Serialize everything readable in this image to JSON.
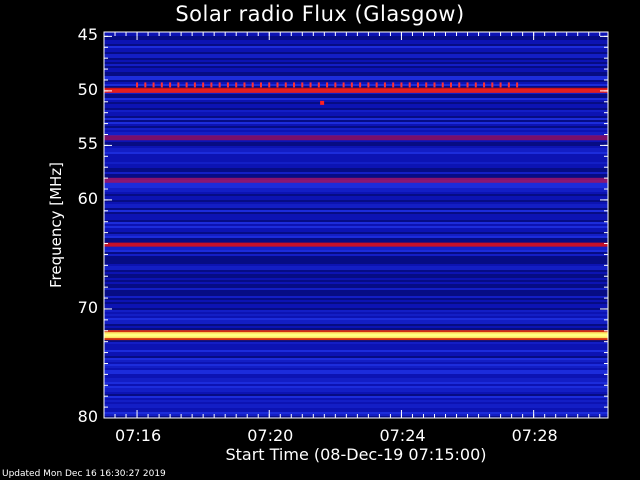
{
  "chart_data": {
    "type": "heatmap",
    "title": "Solar radio Flux (Glasgow)",
    "xlabel": "Start Time (08-Dec-19 07:15:00)",
    "ylabel": "Frequency [MHz]",
    "x_tick_labels": [
      "07:16",
      "07:20",
      "07:24",
      "07:28"
    ],
    "x_tick_minutes": [
      1,
      5,
      9,
      13
    ],
    "xlim_minutes": [
      0,
      15.25
    ],
    "y_tick_labels": [
      "45",
      "50",
      "55",
      "60",
      "70",
      "80"
    ],
    "y_ticks": [
      45,
      50,
      55,
      60,
      70,
      80
    ],
    "ylim": [
      44.6,
      80
    ],
    "background_colormap": "dark-blue",
    "bands": [
      {
        "freq": 49.9,
        "level": "high",
        "color": "#d01010"
      },
      {
        "freq": 50.0,
        "level": "high",
        "color": "#e82020"
      },
      {
        "freq": 54.3,
        "level": "medium",
        "color": "#a01060"
      },
      {
        "freq": 58.2,
        "level": "medium",
        "color": "#b01050"
      },
      {
        "freq": 64.1,
        "level": "high",
        "color": "#d01020"
      },
      {
        "freq": 72.4,
        "level": "saturated",
        "color": "#ffff80"
      }
    ],
    "spikes": {
      "freq": 49.5,
      "start_minute": 1.0,
      "end_minute": 12.7,
      "spacing_minutes": 0.25,
      "color": "#ff3030"
    },
    "isolated_points": [
      {
        "minute": 6.6,
        "freq": 51.1,
        "color": "#ff2020"
      }
    ]
  },
  "footer": "Updated Mon Dec 16 16:30:27 2019"
}
